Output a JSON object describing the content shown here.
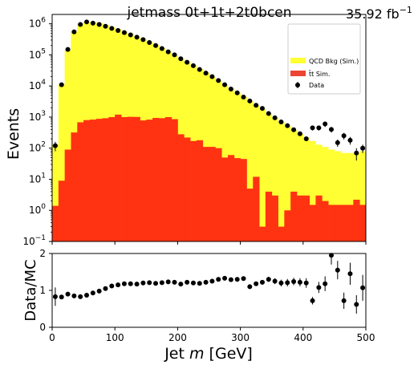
{
  "chart_data": {
    "type": "histogram",
    "title": "jetmass  0t+1t+2t0bcen",
    "lumi_value": "35.92 fb",
    "lumi_exp": "−1",
    "xlabel": "Jet m [GeV]",
    "xlabel_parts": [
      "Jet ",
      "m",
      " [GeV]"
    ],
    "ylabel": "Events",
    "ratio_ylabel": "Data/MC",
    "xlim": [
      0,
      500
    ],
    "ylim_log": [
      0.1,
      2000000
    ],
    "ratio_ylim": [
      0,
      2
    ],
    "bin_width": 10,
    "x_ticks": [
      "0",
      "100",
      "200",
      "300",
      "400",
      "500"
    ],
    "x_tick_values": [
      0,
      100,
      200,
      300,
      400,
      500
    ],
    "y_ticks": [
      {
        "base": "10",
        "exp": "−1",
        "value": 0.1
      },
      {
        "base": "10",
        "exp": "0",
        "value": 1
      },
      {
        "base": "10",
        "exp": "1",
        "value": 10
      },
      {
        "base": "10",
        "exp": "2",
        "value": 100
      },
      {
        "base": "10",
        "exp": "3",
        "value": 1000
      },
      {
        "base": "10",
        "exp": "4",
        "value": 10000
      },
      {
        "base": "10",
        "exp": "5",
        "value": 100000
      },
      {
        "base": "10",
        "exp": "6",
        "value": 1000000
      }
    ],
    "ratio_ticks": [
      "0",
      "1",
      "2"
    ],
    "ratio_tick_values": [
      0,
      1,
      2
    ],
    "legend": [
      {
        "label": "QCD Bkg (Sim.)",
        "color": "#ffff33",
        "kind": "box"
      },
      {
        "label": "t̄t Sim.",
        "color": "#ee4433",
        "kind": "box"
      },
      {
        "label": "Data",
        "color": "#000000",
        "kind": "marker"
      }
    ],
    "colors": {
      "qcd": "#ffff33",
      "ttbar": "#ff3311",
      "data": "#000000"
    },
    "series": [
      {
        "name": "QCD Bkg (Sim.)",
        "stack_top": [
          130,
          11000,
          140000,
          560000,
          1000000,
          1150000,
          1150000,
          1050000,
          920000,
          790000,
          670000,
          560000,
          470000,
          390000,
          320000,
          260000,
          210000,
          165000,
          130000,
          100000,
          78000,
          60000,
          46000,
          35000,
          27000,
          20000,
          15000,
          11000,
          8200,
          6100,
          4500,
          3300,
          2400,
          1800,
          1300,
          950,
          700,
          520,
          380,
          290,
          220,
          170,
          130,
          110,
          90,
          80,
          70,
          70,
          70,
          80
        ]
      },
      {
        "name": "t̄t Sim.",
        "values": [
          1.4,
          9,
          90,
          320,
          680,
          800,
          830,
          880,
          920,
          1000,
          1200,
          1000,
          1020,
          1010,
          780,
          830,
          940,
          920,
          1000,
          860,
          280,
          220,
          170,
          180,
          110,
          110,
          100,
          50,
          60,
          48,
          45,
          5,
          12,
          0.3,
          4,
          3,
          0.3,
          1,
          4,
          3,
          3,
          1.5,
          3,
          2,
          1.5,
          1.5,
          1.5,
          1.5,
          2.2,
          1.5
        ]
      },
      {
        "name": "Data",
        "values": [
          120,
          11000,
          150000,
          550000,
          950000,
          1150000,
          1050000,
          950000,
          830000,
          710000,
          610000,
          520000,
          440000,
          370000,
          310000,
          250000,
          200000,
          160000,
          125000,
          100000,
          75000,
          58000,
          45000,
          34000,
          26000,
          20000,
          15000,
          11000,
          8000,
          6000,
          4400,
          3300,
          2400,
          1900,
          1300,
          950,
          700,
          530,
          390,
          290,
          200,
          450,
          450,
          600,
          400,
          150,
          250,
          180,
          70,
          100
        ],
        "yerr": [
          40,
          0,
          0,
          0,
          0,
          0,
          0,
          0,
          0,
          0,
          0,
          0,
          0,
          0,
          0,
          0,
          0,
          0,
          0,
          0,
          0,
          0,
          0,
          0,
          0,
          0,
          0,
          0,
          0,
          0,
          0,
          0,
          0,
          0,
          0,
          0,
          0,
          0,
          0,
          0,
          0,
          80,
          80,
          120,
          80,
          40,
          60,
          50,
          30,
          30
        ]
      }
    ],
    "ratio": {
      "values": [
        0.83,
        0.82,
        0.9,
        0.85,
        0.83,
        0.87,
        0.93,
        0.98,
        1.05,
        1.12,
        1.15,
        1.18,
        1.18,
        1.17,
        1.2,
        1.21,
        1.19,
        1.21,
        1.23,
        1.22,
        1.17,
        1.22,
        1.2,
        1.19,
        1.22,
        1.25,
        1.3,
        1.33,
        1.29,
        1.3,
        1.32,
        1.1,
        1.18,
        1.22,
        1.3,
        1.25,
        1.2,
        1.21,
        1.24,
        1.22,
        1.2,
        0.72,
        1.08,
        1.18,
        1.95,
        1.55,
        0.72,
        1.45,
        0.62,
        1.07
      ],
      "yerr": [
        0.25,
        0.02,
        0.01,
        0.01,
        0.01,
        0.01,
        0.01,
        0.01,
        0.01,
        0.01,
        0.01,
        0.01,
        0.01,
        0.01,
        0.01,
        0.01,
        0.01,
        0.01,
        0.01,
        0.01,
        0.01,
        0.01,
        0.01,
        0.01,
        0.02,
        0.02,
        0.02,
        0.03,
        0.03,
        0.04,
        0.04,
        0.05,
        0.05,
        0.06,
        0.07,
        0.08,
        0.09,
        0.1,
        0.1,
        0.11,
        0.13,
        0.1,
        0.15,
        0.2,
        0.25,
        0.25,
        0.22,
        0.3,
        0.25,
        0.35
      ]
    }
  }
}
